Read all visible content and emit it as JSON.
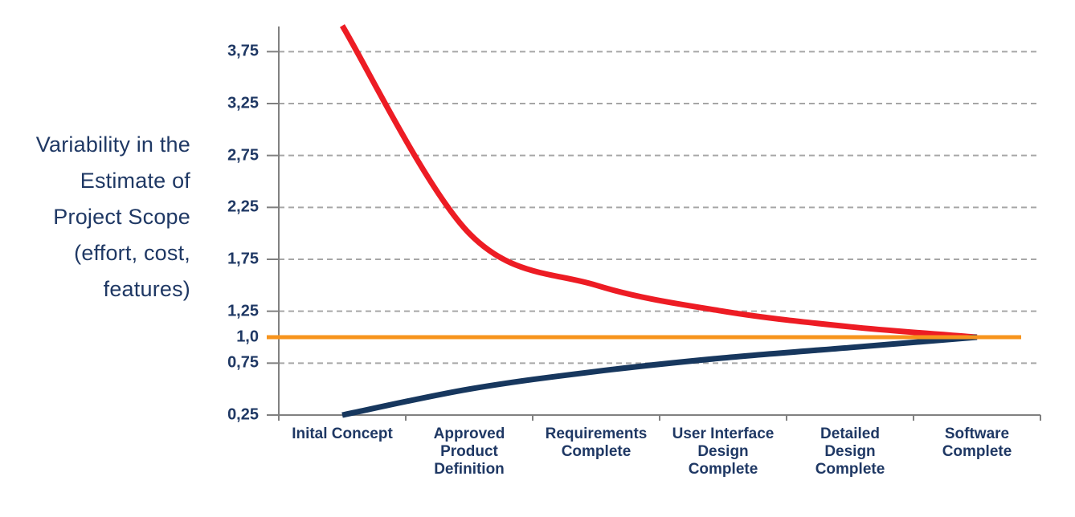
{
  "page": {
    "background": "#ffffff",
    "title_visible": false
  },
  "chart_data": {
    "type": "line",
    "title": "",
    "y_axis_title": "Variability in the\nEstimate of\nProject Scope\n(effort, cost,\nfeatures)",
    "categories": [
      "Inital Concept",
      "Approved\nProduct\nDefinition",
      "Requirements\nComplete",
      "User Interface\nDesign\nComplete",
      "Detailed\nDesign\nComplete",
      "Software\nComplete"
    ],
    "series": [
      {
        "name": "high-estimate-line",
        "color": "#ED1C24",
        "stroke_width": 7,
        "smooth": true,
        "values": [
          4.0,
          2.0,
          1.5,
          1.25,
          1.1,
          1.0
        ]
      },
      {
        "name": "low-estimate-line",
        "color": "#17375E",
        "stroke_width": 7,
        "smooth": true,
        "values": [
          0.25,
          0.5,
          0.67,
          0.8,
          0.9,
          1.0
        ]
      },
      {
        "name": "final-value-baseline",
        "color": "#F7941D",
        "stroke_width": 5,
        "smooth": false,
        "constant": 1.0,
        "values": [
          1.0,
          1.0,
          1.0,
          1.0,
          1.0,
          1.0
        ]
      }
    ],
    "yticks": [
      {
        "label": "3,75",
        "value": 3.75,
        "gridline": true
      },
      {
        "label": "3,25",
        "value": 3.25,
        "gridline": true
      },
      {
        "label": "2,75",
        "value": 2.75,
        "gridline": true
      },
      {
        "label": "2,25",
        "value": 2.25,
        "gridline": true
      },
      {
        "label": "1,75",
        "value": 1.75,
        "gridline": true
      },
      {
        "label": "1,25",
        "value": 1.25,
        "gridline": true
      },
      {
        "label": "1,0",
        "value": 1.0,
        "gridline": false
      },
      {
        "label": "0,75",
        "value": 0.75,
        "gridline": true
      },
      {
        "label": "0,25",
        "value": 0.25,
        "gridline": false
      }
    ],
    "ylim": [
      0.25,
      4.0
    ],
    "decimal_separator": ",",
    "grid": "horizontal-dashed",
    "legend": "none",
    "colors": {
      "axis": "#808080",
      "gridline": "#A6A6A6",
      "text": "#1F3864",
      "high_estimate": "#ED1C24",
      "low_estimate": "#17375E",
      "baseline": "#F7941D"
    }
  }
}
